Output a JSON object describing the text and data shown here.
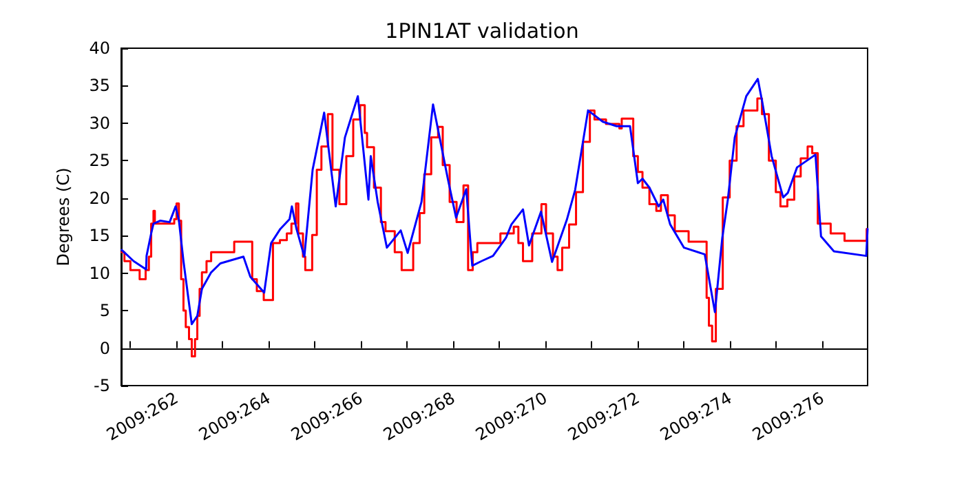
{
  "chart_data": {
    "type": "line",
    "title": "1PIN1AT validation",
    "ylabel": "Degrees (C)",
    "xlim": [
      "2009-09-17T19:12",
      "2009-10-03T23:31"
    ],
    "ylim": [
      -5,
      40
    ],
    "xticks": [
      {
        "value": "2009-09-18",
        "label": null
      },
      {
        "value": "2009-09-19",
        "label": "2009:262"
      },
      {
        "value": "2009-09-20",
        "label": null
      },
      {
        "value": "2009-09-21",
        "label": "2009:264"
      },
      {
        "value": "2009-09-22",
        "label": null
      },
      {
        "value": "2009-09-23",
        "label": "2009:266"
      },
      {
        "value": "2009-09-24",
        "label": null
      },
      {
        "value": "2009-09-25",
        "label": "2009:268"
      },
      {
        "value": "2009-09-26",
        "label": null
      },
      {
        "value": "2009-09-27",
        "label": "2009:270"
      },
      {
        "value": "2009-09-28",
        "label": null
      },
      {
        "value": "2009-09-29",
        "label": "2009:272"
      },
      {
        "value": "2009-09-30",
        "label": null
      },
      {
        "value": "2009-10-01",
        "label": "2009:274"
      },
      {
        "value": "2009-10-02",
        "label": null
      },
      {
        "value": "2009-10-03",
        "label": "2009:276"
      }
    ],
    "yticks": [
      -5,
      0,
      5,
      10,
      15,
      20,
      25,
      30,
      35,
      40
    ],
    "marker": "none",
    "series": [
      {
        "type": "step",
        "color": "#ff0000",
        "x": [
          "2009-09-17T19:26",
          "2009-09-17T20:53",
          "2009-09-18T00:00",
          "2009-09-18T04:48",
          "2009-09-18T07:55",
          "2009-09-18T09:36",
          "2009-09-18T10:48",
          "2009-09-18T12:00",
          "2009-09-18T12:43",
          "2009-09-18T22:48",
          "2009-09-19T00:00",
          "2009-09-19T01:12",
          "2009-09-19T02:24",
          "2009-09-19T03:36",
          "2009-09-19T04:48",
          "2009-09-19T06:29",
          "2009-09-19T07:55",
          "2009-09-19T09:36",
          "2009-09-19T10:48",
          "2009-09-19T12:00",
          "2009-09-19T13:12",
          "2009-09-19T15:36",
          "2009-09-19T18:00",
          "2009-09-20T06:00",
          "2009-09-20T15:22",
          "2009-09-20T17:46",
          "2009-09-20T21:22",
          "2009-09-21T02:10",
          "2009-09-21T05:46",
          "2009-09-21T09:22",
          "2009-09-21T11:46",
          "2009-09-21T14:10",
          "2009-09-21T15:22",
          "2009-09-21T17:46",
          "2009-09-21T18:58",
          "2009-09-21T22:34",
          "2009-09-22T00:58",
          "2009-09-22T03:22",
          "2009-09-22T06:43",
          "2009-09-22T09:07",
          "2009-09-22T12:43",
          "2009-09-22T16:19",
          "2009-09-22T19:55",
          "2009-09-22T23:31",
          "2009-09-23T01:55",
          "2009-09-23T03:07",
          "2009-09-23T06:43",
          "2009-09-23T10:19",
          "2009-09-23T12:43",
          "2009-09-23T17:31",
          "2009-09-23T21:07",
          "2009-09-24T03:07",
          "2009-09-24T06:29",
          "2009-09-24T08:53",
          "2009-09-24T12:29",
          "2009-09-24T16:05",
          "2009-09-24T18:29",
          "2009-09-24T22:05",
          "2009-09-25T01:41",
          "2009-09-25T05:17",
          "2009-09-25T07:41",
          "2009-09-25T10:05",
          "2009-09-25T12:29",
          "2009-09-26T00:29",
          "2009-09-26T07:26",
          "2009-09-26T09:50",
          "2009-09-26T12:14",
          "2009-09-26T17:02",
          "2009-09-26T21:50",
          "2009-09-27T00:14",
          "2009-09-27T03:50",
          "2009-09-27T06:14",
          "2009-09-27T08:38",
          "2009-09-27T12:14",
          "2009-09-27T15:50",
          "2009-09-27T19:26",
          "2009-09-27T23:02",
          "2009-09-28T01:26",
          "2009-09-28T07:26",
          "2009-09-28T14:24",
          "2009-09-28T15:36",
          "2009-09-28T21:36",
          "2009-09-29T00:00",
          "2009-09-29T02:24",
          "2009-09-29T06:00",
          "2009-09-29T09:36",
          "2009-09-29T12:00",
          "2009-09-29T15:36",
          "2009-09-29T19:12",
          "2009-09-30T02:24",
          "2009-09-30T11:46",
          "2009-09-30T12:58",
          "2009-09-30T14:38",
          "2009-09-30T16:34",
          "2009-09-30T20:10",
          "2009-09-30T23:46",
          "2009-10-01T03:22",
          "2009-10-01T06:58",
          "2009-10-01T14:10",
          "2009-10-01T16:34",
          "2009-10-01T20:10",
          "2009-10-01T23:46",
          "2009-10-02T02:10",
          "2009-10-02T05:46",
          "2009-10-02T09:22",
          "2009-10-02T12:43",
          "2009-10-02T16:19",
          "2009-10-02T18:43",
          "2009-10-02T21:36",
          "2009-10-03T04:19",
          "2009-10-03T11:31",
          "2009-10-03T23:02",
          "2009-10-03T23:31"
        ],
        "values": [
          12.8,
          11.6,
          10.4,
          9.2,
          10.4,
          12.2,
          16.6,
          18.3,
          16.6,
          17.2,
          19.3,
          17.0,
          9.2,
          5.0,
          2.8,
          1.2,
          -1.1,
          1.2,
          4.3,
          7.9,
          10.1,
          11.6,
          12.8,
          14.2,
          9.2,
          7.6,
          6.4,
          14.0,
          14.4,
          15.3,
          16.6,
          19.3,
          15.3,
          12.2,
          10.4,
          15.1,
          23.8,
          26.9,
          31.2,
          23.8,
          19.2,
          25.6,
          30.5,
          32.4,
          28.7,
          26.8,
          21.4,
          16.8,
          15.6,
          12.8,
          10.4,
          14.0,
          18.0,
          23.2,
          28.1,
          29.5,
          24.4,
          19.5,
          16.8,
          21.7,
          10.4,
          12.8,
          14.0,
          15.3,
          16.2,
          14.0,
          11.6,
          15.3,
          19.2,
          15.3,
          12.2,
          10.4,
          13.4,
          16.5,
          20.8,
          27.5,
          31.7,
          30.5,
          29.9,
          29.3,
          30.6,
          25.6,
          23.5,
          21.4,
          19.2,
          18.3,
          20.4,
          17.7,
          15.6,
          14.2,
          6.7,
          3.0,
          0.9,
          7.9,
          20.1,
          25.0,
          29.6,
          31.7,
          33.3,
          31.2,
          25.0,
          20.8,
          18.9,
          19.8,
          22.9,
          25.3,
          26.9,
          26.0,
          16.6,
          15.3,
          14.3,
          15.9,
          15.9
        ]
      },
      {
        "type": "line",
        "color": "#0000ff",
        "x": [
          "2009-09-17T19:26",
          "2009-09-18T01:41",
          "2009-09-18T08:10",
          "2009-09-18T08:24",
          "2009-09-18T10:48",
          "2009-09-18T12:00",
          "2009-09-18T15:36",
          "2009-09-18T20:24",
          "2009-09-18T23:31",
          "2009-09-19T01:12",
          "2009-09-19T03:36",
          "2009-09-19T07:55",
          "2009-09-19T10:48",
          "2009-09-19T13:12",
          "2009-09-19T18:00",
          "2009-09-19T22:48",
          "2009-09-20T10:48",
          "2009-09-20T14:24",
          "2009-09-20T21:36",
          "2009-09-21T01:12",
          "2009-09-21T06:00",
          "2009-09-21T10:48",
          "2009-09-21T12:00",
          "2009-09-21T14:24",
          "2009-09-21T18:29",
          "2009-09-21T22:48",
          "2009-09-22T04:48",
          "2009-09-22T10:48",
          "2009-09-22T15:36",
          "2009-09-22T22:19",
          "2009-09-23T03:50",
          "2009-09-23T05:02",
          "2009-09-23T08:38",
          "2009-09-23T13:26",
          "2009-09-23T20:38",
          "2009-09-24T00:14",
          "2009-09-24T07:26",
          "2009-09-24T13:26",
          "2009-09-24T21:07",
          "2009-09-25T01:26",
          "2009-09-25T06:43",
          "2009-09-25T09:50",
          "2009-09-25T14:38",
          "2009-09-25T20:38",
          "2009-09-26T03:22",
          "2009-09-26T06:14",
          "2009-09-26T12:14",
          "2009-09-26T15:22",
          "2009-09-26T21:36",
          "2009-09-27T03:22",
          "2009-09-27T11:02",
          "2009-09-27T15:22",
          "2009-09-27T22:05",
          "2009-09-28T05:46",
          "2009-09-28T12:58",
          "2009-09-28T19:55",
          "2009-09-29T00:00",
          "2009-09-29T02:24",
          "2009-09-29T06:00",
          "2009-09-29T10:48",
          "2009-09-29T13:12",
          "2009-09-29T16:48",
          "2009-09-30T00:00",
          "2009-09-30T10:48",
          "2009-09-30T16:05",
          "2009-09-30T19:55",
          "2009-09-30T22:48",
          "2009-10-01T02:24",
          "2009-10-01T08:24",
          "2009-10-01T14:24",
          "2009-10-01T16:48",
          "2009-10-01T21:36",
          "2009-10-02T03:36",
          "2009-10-02T06:00",
          "2009-10-02T10:48",
          "2009-10-02T20:24",
          "2009-10-02T23:17",
          "2009-10-03T06:00",
          "2009-10-03T22:48",
          "2009-10-03T23:31"
        ],
        "values": [
          13.1,
          11.6,
          10.5,
          12.3,
          15.3,
          16.6,
          17.0,
          16.8,
          18.9,
          17.1,
          11.6,
          3.2,
          4.3,
          7.9,
          10.1,
          11.3,
          12.2,
          9.5,
          7.4,
          14.0,
          15.9,
          17.2,
          18.9,
          15.9,
          12.2,
          23.8,
          31.4,
          18.9,
          28.1,
          33.6,
          19.8,
          25.6,
          19.5,
          13.4,
          15.7,
          12.7,
          19.5,
          32.5,
          22.6,
          17.4,
          21.2,
          11.0,
          11.6,
          12.3,
          14.7,
          16.5,
          18.5,
          13.7,
          18.2,
          11.5,
          17.1,
          21.1,
          31.7,
          30.2,
          29.6,
          29.6,
          22.0,
          22.6,
          21.4,
          18.9,
          19.8,
          16.5,
          13.4,
          12.5,
          4.8,
          14.7,
          19.8,
          28.1,
          33.6,
          35.9,
          32.7,
          25.6,
          20.1,
          20.7,
          24.1,
          25.8,
          14.9,
          12.9,
          12.3,
          15.9
        ]
      }
    ]
  }
}
